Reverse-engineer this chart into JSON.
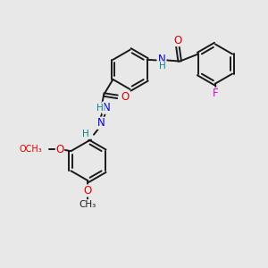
{
  "bg_color": "#e8e8e8",
  "bond_color": "#1a1a1a",
  "bond_width": 1.4,
  "atom_colors": {
    "O": "#dd0000",
    "N": "#0000dd",
    "F": "#dd00dd",
    "H": "#008888",
    "C": "#1a1a1a"
  },
  "font_size": 8.5,
  "small_font": 7.5
}
